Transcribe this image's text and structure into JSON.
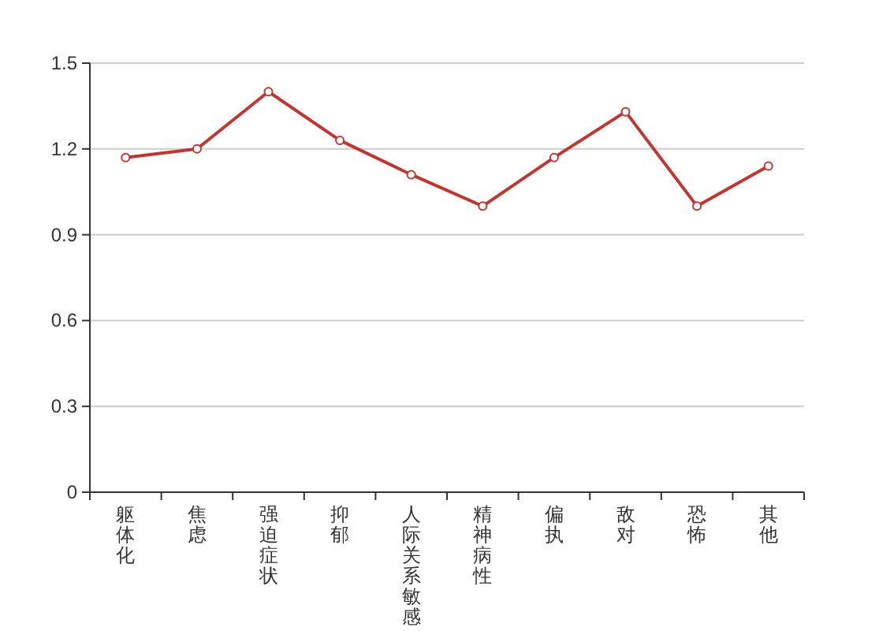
{
  "chart_data": {
    "type": "line",
    "categories": [
      "躯体化",
      "焦虑",
      "强迫症状",
      "抑郁",
      "人际关系敏感",
      "精神病性",
      "偏执",
      "敌对",
      "恐怖",
      "其他"
    ],
    "series": [
      {
        "color": "#c23531",
        "values": [
          1.17,
          1.2,
          1.4,
          1.23,
          1.11,
          1.0,
          1.17,
          1.33,
          1.0,
          1.14
        ]
      }
    ],
    "ylim": [
      0,
      1.5
    ],
    "yticks": [
      0,
      0.3,
      0.6,
      0.9,
      1.2,
      1.5
    ],
    "grid": "y",
    "marker": "circle",
    "line_style": "solid"
  }
}
